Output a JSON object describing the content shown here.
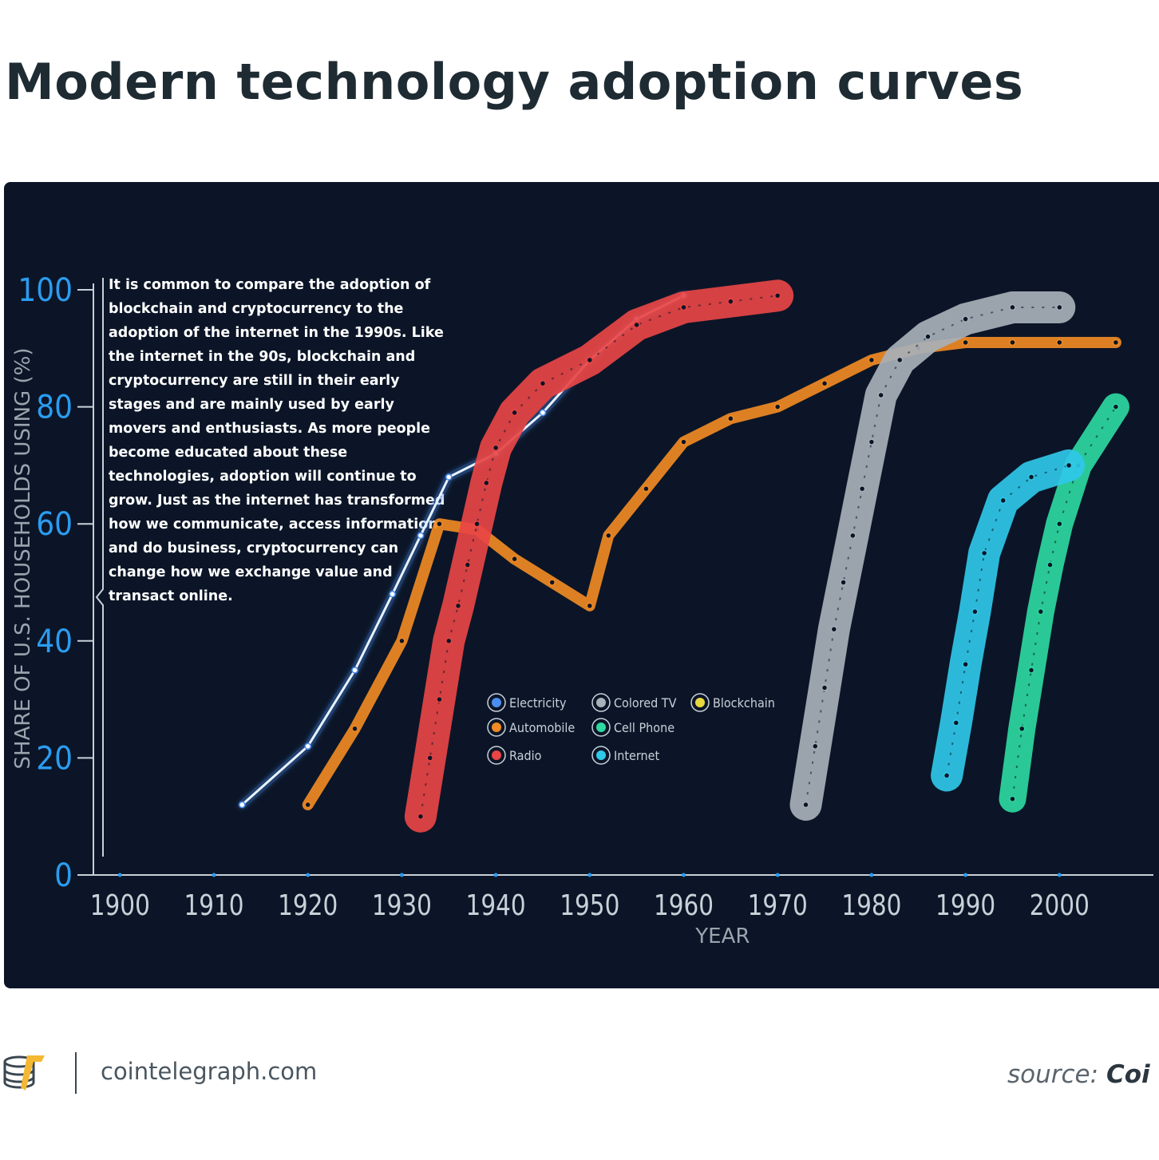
{
  "header": {
    "title": "Modern technology adoption curves"
  },
  "annotation": {
    "lines": [
      "It is common to compare the adoption of",
      "blockchain and cryptocurrency to the",
      "adoption of the internet in the 1990s. Like",
      "the internet in the 90s, blockchain and",
      "cryptocurrency are still in their early",
      "stages and are mainly used by early",
      "movers and enthusiasts. As more people",
      "become educated about these",
      "technologies, adoption will continue to",
      "grow. Just as the internet has transformed",
      "how we communicate, access information",
      "and do business, cryptocurrency can",
      "change how we exchange value and",
      "transact online."
    ]
  },
  "footer": {
    "site": "cointelegraph.com",
    "source_prefix": "source:",
    "source_name": "Coi"
  },
  "chart_data": {
    "type": "line",
    "xlabel": "YEAR",
    "ylabel": "SHARE OF U.S. HOUSEHOLDS USING (%)",
    "xlim": [
      1897,
      2010
    ],
    "ylim": [
      0,
      100
    ],
    "x_ticks": [
      1900,
      1910,
      1920,
      1930,
      1940,
      1950,
      1960,
      1970,
      1980,
      1990,
      2000
    ],
    "y_ticks": [
      0,
      20,
      40,
      60,
      80,
      100
    ],
    "grid": false,
    "legend_position": "center",
    "series": [
      {
        "name": "Electricity",
        "color": "#4a8df0",
        "x": [
          1913,
          1920,
          1925,
          1929,
          1932,
          1935,
          1940,
          1945,
          1950,
          1955,
          1960
        ],
        "y": [
          12,
          22,
          35,
          48,
          58,
          68,
          72,
          79,
          88,
          95,
          99
        ]
      },
      {
        "name": "Automobile",
        "color": "#f08a24",
        "x": [
          1920,
          1925,
          1930,
          1934,
          1938,
          1942,
          1946,
          1950,
          1952,
          1956,
          1960,
          1965,
          1970,
          1975,
          1980,
          1985,
          1990,
          1995,
          2000,
          2006
        ],
        "y": [
          12,
          25,
          40,
          60,
          59,
          54,
          50,
          46,
          58,
          66,
          74,
          78,
          80,
          84,
          88,
          90,
          91,
          91,
          91,
          91
        ]
      },
      {
        "name": "Radio",
        "color": "#e84545",
        "x": [
          1932,
          1933,
          1934,
          1935,
          1936,
          1937,
          1938,
          1939,
          1940,
          1942,
          1945,
          1950,
          1955,
          1960,
          1965,
          1970
        ],
        "y": [
          10,
          20,
          30,
          40,
          46,
          53,
          60,
          67,
          73,
          79,
          84,
          88,
          94,
          97,
          98,
          99
        ]
      },
      {
        "name": "Colored TV",
        "color": "#a8b0b8",
        "x": [
          1973,
          1974,
          1975,
          1976,
          1977,
          1978,
          1979,
          1980,
          1981,
          1983,
          1986,
          1990,
          1995,
          2000
        ],
        "y": [
          12,
          22,
          32,
          42,
          50,
          58,
          66,
          74,
          82,
          88,
          92,
          95,
          97,
          97
        ]
      },
      {
        "name": "Cell Phone",
        "color": "#2ed8a0",
        "x": [
          1995,
          1996,
          1997,
          1998,
          1999,
          2000,
          2002,
          2006
        ],
        "y": [
          13,
          25,
          35,
          45,
          53,
          60,
          70,
          80
        ]
      },
      {
        "name": "Internet",
        "color": "#30c8e8",
        "x": [
          1988,
          1989,
          1990,
          1991,
          1992,
          1994,
          1997,
          2001
        ],
        "y": [
          17,
          26,
          36,
          45,
          55,
          64,
          68,
          70
        ]
      },
      {
        "name": "Blockchain",
        "color": "#e8d840",
        "x": [],
        "y": []
      }
    ]
  }
}
